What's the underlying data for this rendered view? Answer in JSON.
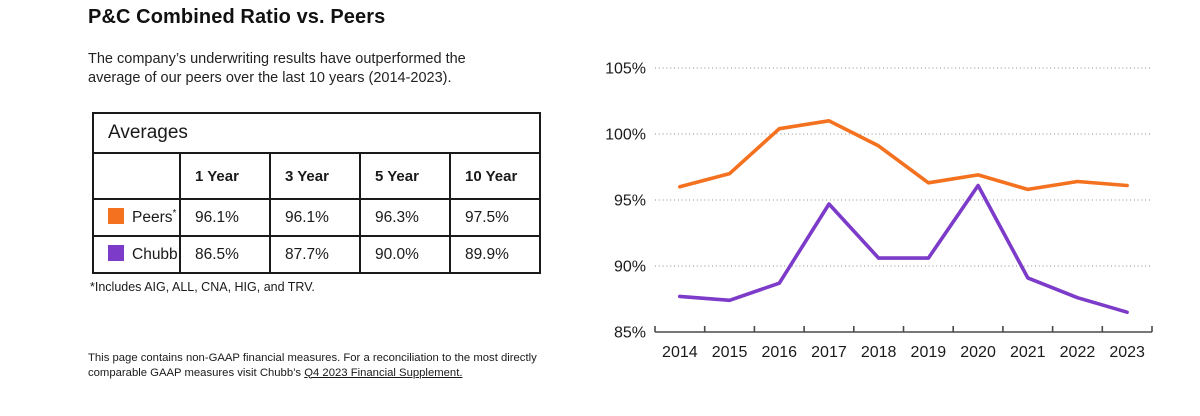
{
  "header": {
    "title": "P&C Combined Ratio vs. Peers"
  },
  "description": {
    "line1": "The company’s underwriting results have outperformed the",
    "line2": "average of our peers over the last 10 years (2014-2023)."
  },
  "averages_table": {
    "title": "Averages",
    "column_headers": [
      "1 Year",
      "3 Year",
      "5 Year",
      "10 Year"
    ],
    "rows": [
      {
        "label": "Peers",
        "label_superscript": "*",
        "swatch_color": "#F4711F",
        "values": [
          "96.1%",
          "96.1%",
          "96.3%",
          "97.5%"
        ]
      },
      {
        "label": "Chubb",
        "label_superscript": "",
        "swatch_color": "#7C3BC8",
        "values": [
          "86.5%",
          "87.7%",
          "90.0%",
          "89.9%"
        ]
      }
    ]
  },
  "footnote": "*Includes AIG, ALL, CNA, HIG,  and TRV.",
  "disclaimer": {
    "line1": "This page contains non-GAAP financial measures. For a reconciliation to the most directly",
    "line2_prefix": "comparable GAAP measures visit Chubb’s ",
    "link_text": "Q4 2023 Financial Supplement."
  },
  "chart_data": {
    "type": "line",
    "x": [
      "2014",
      "2015",
      "2016",
      "2017",
      "2018",
      "2019",
      "2020",
      "2021",
      "2022",
      "2023"
    ],
    "series": [
      {
        "name": "Peers",
        "color": "#F4711F",
        "values": [
          96.0,
          97.0,
          100.4,
          101.0,
          99.1,
          96.3,
          96.9,
          95.8,
          96.4,
          96.1
        ]
      },
      {
        "name": "Chubb",
        "color": "#7C3BC8",
        "values": [
          87.7,
          87.4,
          88.7,
          94.7,
          90.6,
          90.6,
          96.1,
          89.1,
          87.6,
          86.5
        ]
      }
    ],
    "ylim": [
      85,
      105
    ],
    "yticks": [
      85,
      90,
      95,
      100,
      105
    ],
    "ytick_format": "{v}%",
    "xlabel": "",
    "ylabel": "",
    "grid": "dotted-horizontal",
    "legend_position": "none"
  }
}
